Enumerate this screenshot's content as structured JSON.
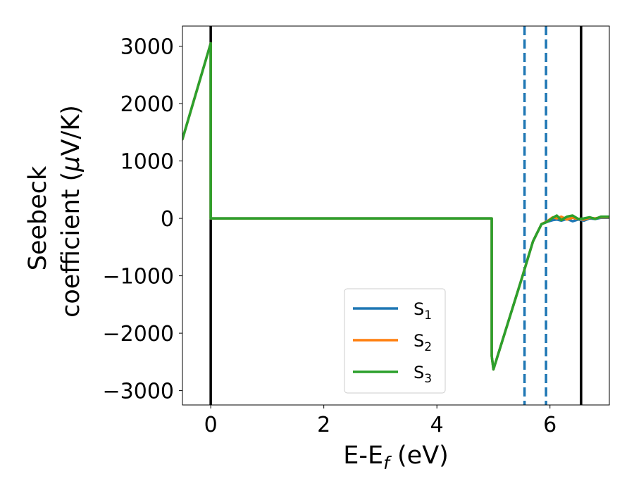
{
  "chart_data": {
    "type": "line",
    "xlabel": "E-E_f (eV)",
    "ylabel_line1": "Seebeck",
    "ylabel_line2": "coefficient  (μV/K)",
    "xlim": [
      -0.5,
      7.05
    ],
    "ylim": [
      -3250,
      3350
    ],
    "xticks": [
      0,
      2,
      4,
      6
    ],
    "yticks": [
      3000,
      2000,
      1000,
      0,
      -1000,
      -2000,
      -3000
    ],
    "ytick_labels": [
      "3000",
      "2000",
      "1000",
      "0",
      "−1000",
      "−2000",
      "−3000"
    ],
    "legend": {
      "placement": "lower-center"
    },
    "vertical_lines": [
      {
        "x": 0.0,
        "style": "solid",
        "color": "#000000"
      },
      {
        "x": 6.55,
        "style": "solid",
        "color": "#000000"
      },
      {
        "x": 5.55,
        "style": "dashed",
        "color": "#1f77b4"
      },
      {
        "x": 5.93,
        "style": "dashed",
        "color": "#1f77b4"
      }
    ],
    "series": [
      {
        "name": "S1",
        "color": "#1f77b4",
        "x": [
          -0.5,
          0.0,
          0.0,
          4.97,
          4.97,
          5.0,
          5.5,
          5.7,
          5.85,
          5.95,
          6.05,
          6.12,
          6.2,
          6.3,
          6.4,
          6.5,
          6.6,
          6.7,
          6.8,
          6.9,
          7.05
        ],
        "y": [
          1380,
          3050,
          0,
          0,
          -2400,
          -2630,
          -1050,
          -400,
          -100,
          -60,
          -30,
          -20,
          -40,
          -10,
          -50,
          -20,
          -40,
          0,
          -10,
          10,
          10
        ]
      },
      {
        "name": "S2",
        "color": "#ff7f0e",
        "x": [
          -0.5,
          0.0,
          0.0,
          4.97,
          4.97,
          5.0,
          5.5,
          5.7,
          5.85,
          5.95,
          6.05,
          6.12,
          6.2,
          6.3,
          6.4,
          6.5,
          6.6,
          6.7,
          6.8,
          6.9,
          7.05
        ],
        "y": [
          1380,
          3050,
          0,
          0,
          -2400,
          -2630,
          -1050,
          -400,
          -100,
          -50,
          20,
          0,
          30,
          -20,
          10,
          -10,
          -20,
          10,
          0,
          20,
          20
        ]
      },
      {
        "name": "S3",
        "color": "#2ca02c",
        "x": [
          -0.5,
          0.0,
          0.0,
          4.97,
          4.97,
          5.0,
          5.5,
          5.7,
          5.85,
          5.95,
          6.05,
          6.12,
          6.2,
          6.3,
          6.4,
          6.5,
          6.6,
          6.7,
          6.8,
          6.9,
          7.05
        ],
        "y": [
          1380,
          3050,
          0,
          0,
          -2400,
          -2630,
          -1050,
          -400,
          -100,
          -60,
          10,
          50,
          -30,
          30,
          50,
          -10,
          0,
          20,
          -10,
          30,
          30
        ]
      }
    ]
  }
}
